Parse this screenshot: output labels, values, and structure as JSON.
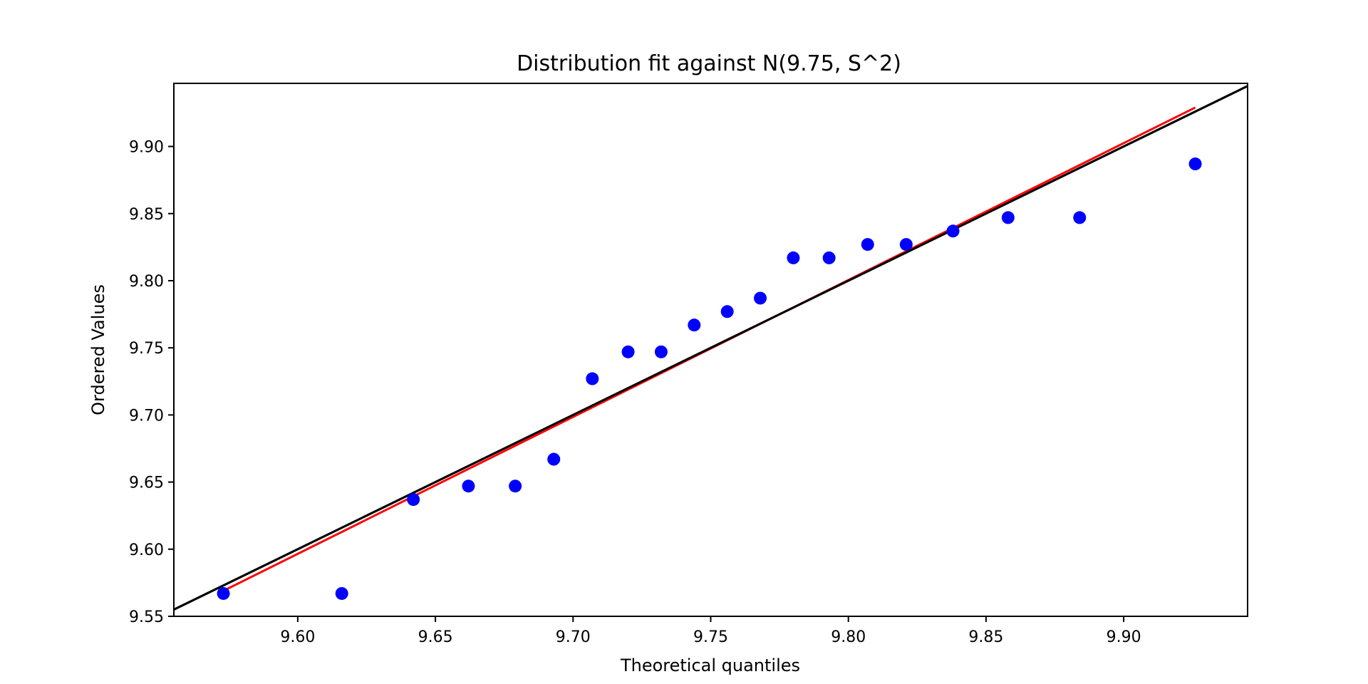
{
  "chart_data": {
    "type": "scatter",
    "title": "Distribution fit against N(9.75, S^2)",
    "xlabel": "Theoretical quantiles",
    "ylabel": "Ordered Values",
    "xlim": [
      9.555,
      9.945
    ],
    "ylim": [
      9.55,
      9.947
    ],
    "xticks": [
      9.6,
      9.65,
      9.7,
      9.75,
      9.8,
      9.85,
      9.9
    ],
    "yticks": [
      9.55,
      9.6,
      9.65,
      9.7,
      9.75,
      9.8,
      9.85,
      9.9
    ],
    "grid": false,
    "points": [
      {
        "x": 9.573,
        "y": 9.567
      },
      {
        "x": 9.616,
        "y": 9.567
      },
      {
        "x": 9.642,
        "y": 9.637
      },
      {
        "x": 9.662,
        "y": 9.647
      },
      {
        "x": 9.679,
        "y": 9.647
      },
      {
        "x": 9.693,
        "y": 9.667
      },
      {
        "x": 9.707,
        "y": 9.727
      },
      {
        "x": 9.72,
        "y": 9.747
      },
      {
        "x": 9.732,
        "y": 9.747
      },
      {
        "x": 9.744,
        "y": 9.767
      },
      {
        "x": 9.756,
        "y": 9.777
      },
      {
        "x": 9.768,
        "y": 9.787
      },
      {
        "x": 9.78,
        "y": 9.817
      },
      {
        "x": 9.793,
        "y": 9.817
      },
      {
        "x": 9.807,
        "y": 9.827
      },
      {
        "x": 9.821,
        "y": 9.827
      },
      {
        "x": 9.838,
        "y": 9.837
      },
      {
        "x": 9.858,
        "y": 9.847
      },
      {
        "x": 9.884,
        "y": 9.847
      },
      {
        "x": 9.926,
        "y": 9.887
      }
    ],
    "fit_line": {
      "x": [
        9.573,
        9.926
      ],
      "y": [
        9.569,
        9.929
      ]
    },
    "reference_line": {
      "x": [
        9.555,
        9.945
      ],
      "y": [
        9.555,
        9.945
      ]
    },
    "colors": {
      "points": "#0000ff",
      "fit_line": "#ff0000",
      "reference_line": "#000000"
    }
  }
}
